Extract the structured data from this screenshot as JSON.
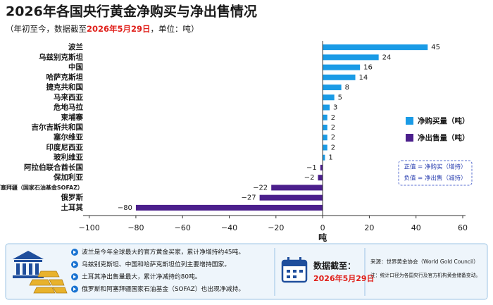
{
  "chart_data": {
    "type": "bar",
    "orientation": "horizontal",
    "title": "2026年各国央行黄金净购买与净出售情况",
    "subtitle": {
      "prefix": "（年初至今，数据截至",
      "date": "2026年5月29日",
      "suffix": "，单位：吨）"
    },
    "categories": [
      "波兰",
      "乌兹别克斯坦",
      "中国",
      "哈萨克斯坦",
      "捷克共和国",
      "马来西亚",
      "危地马拉",
      "柬埔寨",
      "吉尔吉斯共和国",
      "塞尔维亚",
      "印度尼西亚",
      "玻利维亚",
      "阿拉伯联合酋长国",
      "保加利亚",
      "阿塞拜疆（国家石油基金SOFAZ）",
      "俄罗斯",
      "土耳其"
    ],
    "series": [
      {
        "name": "净购买量（吨）",
        "color": "#1a9be6",
        "values": [
          45,
          24,
          16,
          14,
          8,
          5,
          3,
          2,
          2,
          2,
          2,
          1,
          null,
          null,
          null,
          null,
          null
        ]
      },
      {
        "name": "净出售量（吨）",
        "color": "#4b1f8c",
        "values": [
          null,
          null,
          null,
          null,
          null,
          null,
          null,
          null,
          null,
          null,
          null,
          null,
          -1,
          -2,
          -22,
          -27,
          -80
        ],
        "value_labels": [
          null,
          null,
          null,
          null,
          null,
          null,
          null,
          null,
          null,
          null,
          null,
          null,
          "−1",
          "−2",
          "−22",
          "−27",
          "−80"
        ]
      }
    ],
    "xlim": [
      -102,
      60
    ],
    "xticks": [
      {
        "value": -100,
        "label": "−100"
      },
      {
        "value": -80,
        "label": "−80"
      },
      {
        "value": -60,
        "label": "−60"
      },
      {
        "value": -40,
        "label": "−40"
      },
      {
        "value": -20,
        "label": "−20"
      },
      0,
      20,
      40,
      60
    ],
    "xlabel": "吨",
    "legend_position": "right",
    "annotation": [
      "正值 = 净购买（增持）",
      "负值 = 净出售（减持）"
    ]
  },
  "info_panel": {
    "bullets": [
      "波兰是今年全球最大的官方黄金买家，累计净增持约45吨。",
      "乌兹别克斯坦、中国和哈萨克斯坦位列主要增持国家。",
      "土耳其净出售量最大，累计净减持约80吨。",
      "俄罗斯和阿塞拜疆国家石油基金（SOFAZ）也出现净减持。"
    ],
    "date_label": "数据截至：",
    "date": "2026年5月29日",
    "source": "来源：世界黄金协会（World Gold Council）",
    "note": "注：统计口径为各国央行及官方机构黄金储备变动。"
  }
}
